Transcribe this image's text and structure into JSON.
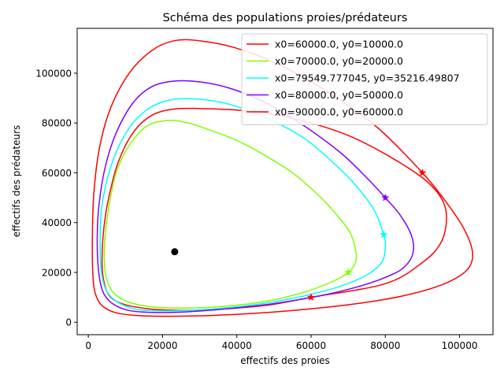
{
  "chart_data": {
    "type": "line",
    "title": "Schéma des populations proies/prédateurs",
    "xlabel": "effectifs des proies",
    "ylabel": "effectifs des prédateurs",
    "xlim": [
      -3000,
      109000
    ],
    "ylim": [
      -5000,
      118000
    ],
    "xticks": [
      0,
      20000,
      40000,
      60000,
      80000,
      100000
    ],
    "yticks": [
      0,
      20000,
      40000,
      60000,
      80000,
      100000
    ],
    "grid": false,
    "legend_position": "top-right",
    "equilibrium_point": {
      "x": 23270,
      "y": 28300,
      "color": "#000000"
    },
    "series": [
      {
        "name": "x0=60000.0, y0=10000.0",
        "color": "#ff0000",
        "start": [
          60000,
          10000
        ],
        "points": [
          [
            60000,
            10000
          ],
          [
            80000,
            15500
          ],
          [
            90000,
            24000
          ],
          [
            95000,
            32000
          ],
          [
            96500,
            42000
          ],
          [
            95000,
            50000
          ],
          [
            90000,
            58000
          ],
          [
            80000,
            67500
          ],
          [
            70000,
            75000
          ],
          [
            60000,
            80000
          ],
          [
            50000,
            83500
          ],
          [
            40000,
            85200
          ],
          [
            30000,
            85800
          ],
          [
            23000,
            85600
          ],
          [
            17000,
            83000
          ],
          [
            12000,
            76000
          ],
          [
            8000,
            64000
          ],
          [
            5500,
            50000
          ],
          [
            4200,
            38000
          ],
          [
            3700,
            26000
          ],
          [
            4000,
            18000
          ],
          [
            5500,
            11000
          ],
          [
            9000,
            7500
          ],
          [
            15000,
            5600
          ],
          [
            23000,
            4800
          ],
          [
            35000,
            5200
          ],
          [
            48000,
            6800
          ],
          [
            60000,
            10000
          ]
        ]
      },
      {
        "name": "x0=70000.0, y0=20000.0",
        "color": "#80ff00",
        "start": [
          70000,
          20000
        ],
        "points": [
          [
            70000,
            20000
          ],
          [
            72000,
            24000
          ],
          [
            72000,
            29000
          ],
          [
            70500,
            36000
          ],
          [
            67000,
            43000
          ],
          [
            62000,
            51000
          ],
          [
            55000,
            60000
          ],
          [
            47000,
            67500
          ],
          [
            40000,
            73000
          ],
          [
            33000,
            77000
          ],
          [
            27000,
            80000
          ],
          [
            22000,
            81000
          ],
          [
            16000,
            79000
          ],
          [
            11000,
            71000
          ],
          [
            7500,
            60000
          ],
          [
            5500,
            46000
          ],
          [
            4500,
            34000
          ],
          [
            4300,
            25000
          ],
          [
            5000,
            17000
          ],
          [
            7000,
            11500
          ],
          [
            11000,
            8000
          ],
          [
            17000,
            6200
          ],
          [
            24000,
            5700
          ],
          [
            35000,
            6200
          ],
          [
            47000,
            8200
          ],
          [
            58000,
            12000
          ],
          [
            66000,
            16500
          ],
          [
            70000,
            20000
          ]
        ]
      },
      {
        "name": "x0=79549.777045, y0=35216.49807",
        "color": "#00ffff",
        "start": [
          79549.777045,
          35216.49807
        ],
        "points": [
          [
            79549.78,
            35216.5
          ],
          [
            80000,
            30000
          ],
          [
            79000,
            24000
          ],
          [
            75000,
            19000
          ],
          [
            68000,
            14500
          ],
          [
            58000,
            10500
          ],
          [
            47000,
            7500
          ],
          [
            36000,
            5600
          ],
          [
            26000,
            4700
          ],
          [
            18000,
            4600
          ],
          [
            12000,
            5500
          ],
          [
            7000,
            9000
          ],
          [
            4500,
            14000
          ],
          [
            3400,
            22000
          ],
          [
            3200,
            34000
          ],
          [
            3600,
            46000
          ],
          [
            5200,
            58000
          ],
          [
            8000,
            70000
          ],
          [
            12000,
            80000
          ],
          [
            17000,
            86500
          ],
          [
            23000,
            89500
          ],
          [
            30000,
            89500
          ],
          [
            38000,
            87500
          ],
          [
            48000,
            82000
          ],
          [
            58000,
            74000
          ],
          [
            66000,
            64000
          ],
          [
            72000,
            55000
          ],
          [
            77000,
            45000
          ],
          [
            79549.78,
            35216.5
          ]
        ]
      },
      {
        "name": "x0=80000.0, y0=50000.0",
        "color": "#8000ff",
        "start": [
          80000,
          50000
        ],
        "points": [
          [
            80000,
            50000
          ],
          [
            84000,
            43000
          ],
          [
            87000,
            35000
          ],
          [
            87500,
            28000
          ],
          [
            85000,
            22000
          ],
          [
            80000,
            18000
          ],
          [
            72000,
            14000
          ],
          [
            62000,
            10500
          ],
          [
            50000,
            7500
          ],
          [
            38000,
            5500
          ],
          [
            27000,
            4200
          ],
          [
            18000,
            3900
          ],
          [
            11000,
            4700
          ],
          [
            6500,
            7500
          ],
          [
            4000,
            12000
          ],
          [
            2800,
            20000
          ],
          [
            2400,
            32000
          ],
          [
            2800,
            46000
          ],
          [
            4500,
            62000
          ],
          [
            7500,
            76000
          ],
          [
            12000,
            88000
          ],
          [
            17000,
            94500
          ],
          [
            23000,
            96800
          ],
          [
            30000,
            96500
          ],
          [
            38000,
            94000
          ],
          [
            48000,
            88000
          ],
          [
            58000,
            79000
          ],
          [
            68000,
            68000
          ],
          [
            75000,
            58000
          ],
          [
            80000,
            50000
          ]
        ]
      },
      {
        "name": "x0=90000.0, y0=60000.0",
        "color": "#ff0000",
        "start": [
          90000,
          60000
        ],
        "points": [
          [
            90000,
            60000
          ],
          [
            96000,
            49000
          ],
          [
            101000,
            38000
          ],
          [
            103500,
            28000
          ],
          [
            102000,
            21000
          ],
          [
            96000,
            15500
          ],
          [
            86000,
            11000
          ],
          [
            74000,
            7800
          ],
          [
            60000,
            5400
          ],
          [
            46000,
            3700
          ],
          [
            33000,
            2700
          ],
          [
            22000,
            2400
          ],
          [
            13000,
            2700
          ],
          [
            7000,
            4000
          ],
          [
            3500,
            7000
          ],
          [
            1800,
            12000
          ],
          [
            1200,
            20000
          ],
          [
            1100,
            35000
          ],
          [
            1500,
            52000
          ],
          [
            3000,
            70000
          ],
          [
            6000,
            86000
          ],
          [
            11000,
            100000
          ],
          [
            17000,
            109000
          ],
          [
            23000,
            113000
          ],
          [
            30000,
            113000
          ],
          [
            40000,
            110000
          ],
          [
            52000,
            103000
          ],
          [
            65000,
            92000
          ],
          [
            78000,
            78000
          ],
          [
            90000,
            60000
          ]
        ]
      }
    ]
  }
}
